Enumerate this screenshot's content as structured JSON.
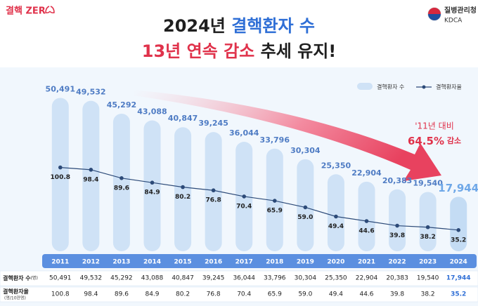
{
  "logo": {
    "text": "결핵 ZER",
    "org_ko": "질병관리청",
    "org_en": "KDCA"
  },
  "chart_data": {
    "type": "bar-line",
    "title_lines": [
      [
        {
          "text": "2024년 ",
          "color": "#1f1f1f"
        },
        {
          "text": "결핵환자 수",
          "color": "#2f6fd6"
        }
      ],
      [
        {
          "text": "13년 연속 감소",
          "color": "#e0324b"
        },
        {
          "text": " 추세 유지!",
          "color": "#1f1f1f"
        }
      ]
    ],
    "categories": [
      "2011",
      "2012",
      "2013",
      "2014",
      "2015",
      "2016",
      "2017",
      "2018",
      "2019",
      "2020",
      "2021",
      "2022",
      "2023",
      "2024"
    ],
    "series": [
      {
        "name": "결핵환자 수",
        "color": "#cfe2f6",
        "kind": "bar",
        "values": [
          50491,
          49532,
          45292,
          43088,
          40847,
          39245,
          36044,
          33796,
          30304,
          25350,
          22904,
          20383,
          19540,
          17944
        ],
        "value_labels": [
          "50,491",
          "49,532",
          "45,292",
          "43,088",
          "40,847",
          "39,245",
          "36,044",
          "33,796",
          "30,304",
          "25,350",
          "22,904",
          "20,383",
          "19,540",
          "17,944"
        ]
      },
      {
        "name": "결핵환자율",
        "color": "#2c4a78",
        "kind": "line",
        "axis": "y2",
        "values": [
          100.8,
          98.4,
          89.6,
          84.9,
          80.2,
          76.8,
          70.4,
          65.9,
          59.0,
          49.4,
          44.6,
          39.8,
          38.2,
          35.2
        ],
        "value_labels": [
          "100.8",
          "98.4",
          "89.6",
          "84.9",
          "80.2",
          "76.8",
          "70.4",
          "65.9",
          "59.0",
          "49.4",
          "44.6",
          "39.8",
          "38.2",
          "35.2"
        ]
      }
    ],
    "ylim": [
      0,
      55000
    ],
    "y2lim": [
      13,
      188
    ],
    "annotation": {
      "line1": "'11년 대비",
      "line2_num": "64.5%",
      "line2_text": " 감소"
    },
    "table_rows": [
      {
        "main": "결핵환자 수",
        "unit": "(명)"
      },
      {
        "main": "결핵환자율",
        "unit": "(명/10만명)"
      }
    ]
  }
}
